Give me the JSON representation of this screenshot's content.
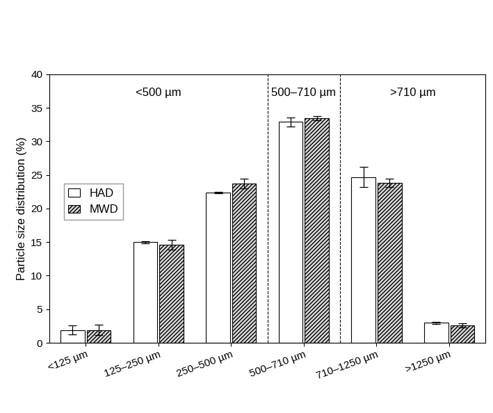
{
  "chart_data": {
    "type": "bar",
    "y_label": "Particle size distribution (%)",
    "categories": [
      "<125 µm",
      "125–250 µm",
      "250–500 µm",
      "500–710 µm",
      "710–1250 µm",
      ">1250 µm"
    ],
    "groups": [
      {
        "label": "<500 µm",
        "categories": [
          "<125 µm",
          "125–250 µm",
          "250–500 µm"
        ]
      },
      {
        "label": "500–710 µm",
        "categories": [
          "500–710 µm"
        ]
      },
      {
        "label": ">710 µm",
        "categories": [
          "710–1250 µm",
          ">1250 µm"
        ]
      }
    ],
    "series": [
      {
        "name": "HAD",
        "color": "#ffffff",
        "values": [
          1.9,
          15.0,
          22.4,
          32.9,
          24.7,
          3.0
        ],
        "errors": [
          0.7,
          0.15,
          0.1,
          0.7,
          1.5,
          0.15
        ]
      },
      {
        "name": "MWD",
        "color": "#d9d9d9",
        "values": [
          1.9,
          14.6,
          23.7,
          33.5,
          23.8,
          2.6
        ],
        "errors": [
          0.8,
          0.7,
          0.7,
          0.3,
          0.6,
          0.3
        ]
      }
    ],
    "ylim": [
      0,
      40
    ],
    "yticks": [
      0,
      5,
      10,
      15,
      20,
      25,
      30,
      35,
      40
    ],
    "legend": "center left",
    "grid": false
  }
}
